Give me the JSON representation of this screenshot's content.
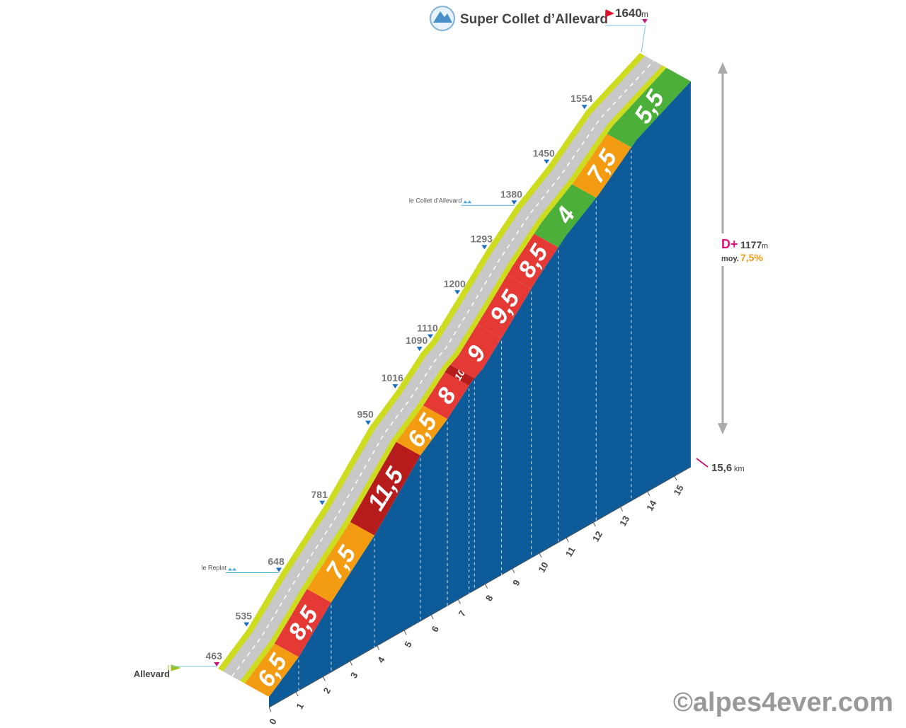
{
  "chart_data": {
    "type": "climb-profile",
    "title": "Super Collet d’Allevard",
    "summit_unit": "m",
    "start_name": "Allevard",
    "distance": {
      "value": 15.6,
      "label": "15,6"
    },
    "distance_unit": "km",
    "gain_label": "D+",
    "gain": 1177,
    "gain_unit": "m",
    "avg_label": "moy.",
    "avg": {
      "value": 7.5,
      "label": "7,5%"
    },
    "credit": "©alpes4ever.com",
    "xlim": [
      0,
      15.6
    ],
    "xticks": [
      0,
      1,
      2,
      3,
      4,
      5,
      6,
      7,
      8,
      9,
      10,
      11,
      12,
      13,
      14,
      15
    ],
    "markers": {
      "x": [
        0,
        1.1,
        2.3,
        3.9,
        5.6,
        6.6,
        7.5,
        7.9,
        8.9,
        9.9,
        11.0,
        12.2,
        13.6,
        15.6
      ],
      "values": [
        463,
        535,
        648,
        781,
        950,
        1016,
        1090,
        1110,
        1200,
        1293,
        1380,
        1450,
        1554,
        1640
      ]
    },
    "places": [
      {
        "name": "le Replat",
        "km": 2.3
      },
      {
        "name": "le Collet d’Allevard",
        "km": 11.0
      }
    ],
    "segments": {
      "bins": [
        0,
        1.1,
        2.3,
        3.9,
        5.6,
        6.6,
        7.4,
        7.6,
        8.6,
        9.7,
        10.7,
        12.1,
        13.4,
        15.6
      ],
      "values": [
        6.5,
        8.5,
        7.5,
        11.5,
        6.5,
        8,
        10,
        9,
        9.5,
        8.5,
        4,
        7.5,
        5.5
      ],
      "value_labels": [
        "6,5",
        "8,5",
        "7,5",
        "11,5",
        "6,5",
        "8",
        "10",
        "9",
        "9,5",
        "8,5",
        "4",
        "7,5",
        "5,5"
      ],
      "colors": [
        "#f39c12",
        "#e53935",
        "#f39c12",
        "#b71c1c",
        "#f39c12",
        "#e53935",
        "#b71c1c",
        "#e53935",
        "#e53935",
        "#e53935",
        "#4caf3a",
        "#f39c12",
        "#4caf3a"
      ]
    },
    "body_color": "#0d5c99"
  }
}
